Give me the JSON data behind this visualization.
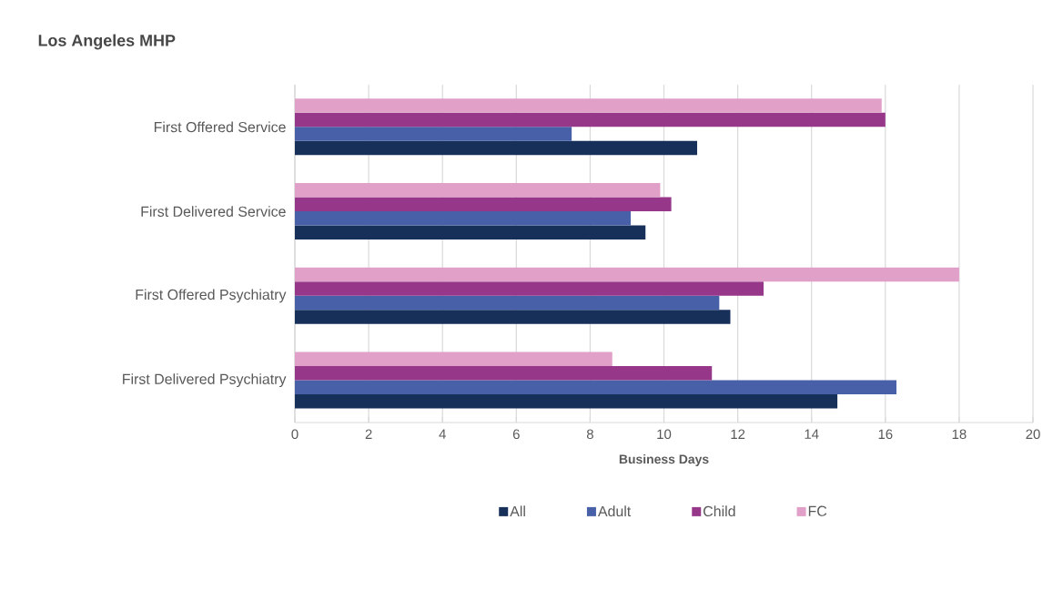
{
  "chart_data": {
    "type": "bar",
    "orientation": "horizontal",
    "title": "Los Angeles MHP",
    "xlabel": "Business Days",
    "categories": [
      "First Offered Service",
      "First Delivered Service",
      "First Offered Psychiatry",
      "First Delivered Psychiatry"
    ],
    "series": [
      {
        "name": "All",
        "color": "#17305a",
        "values": [
          10.9,
          9.5,
          11.8,
          14.7
        ]
      },
      {
        "name": "Adult",
        "color": "#4860a8",
        "values": [
          7.5,
          9.1,
          11.5,
          16.3
        ]
      },
      {
        "name": "Child",
        "color": "#96378a",
        "values": [
          16.0,
          10.2,
          12.7,
          11.3
        ]
      },
      {
        "name": "FC",
        "color": "#e0a0c8",
        "values": [
          15.9,
          9.9,
          18.0,
          8.6
        ]
      }
    ],
    "xlim": [
      0,
      20
    ],
    "xticks": [
      0,
      2,
      4,
      6,
      8,
      10,
      12,
      14,
      16,
      18,
      20
    ],
    "grid": "x",
    "legend": "bottom"
  }
}
